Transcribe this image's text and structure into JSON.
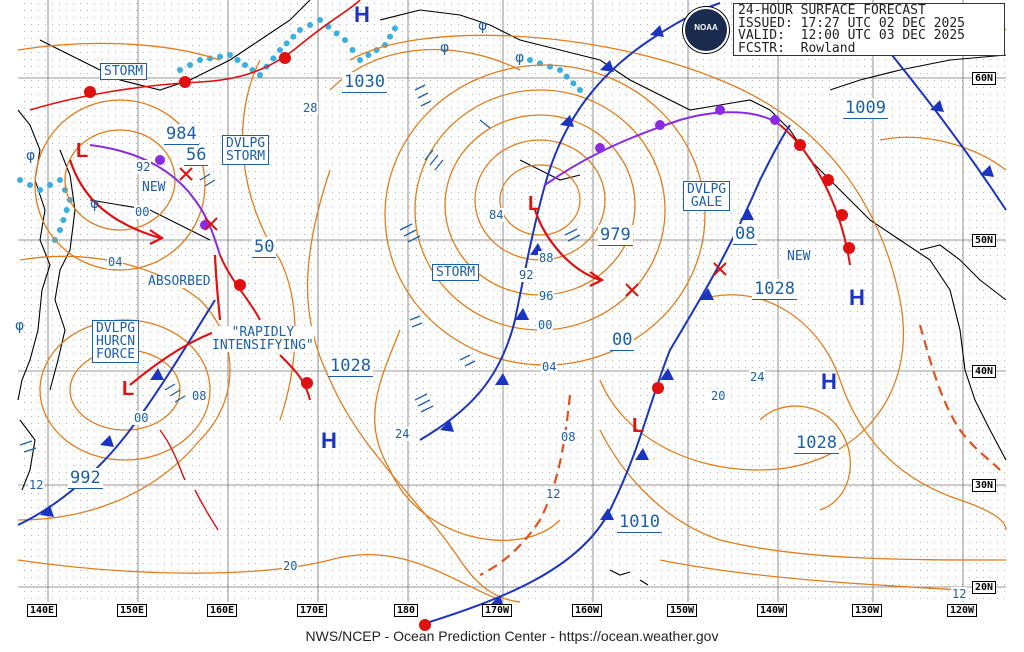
{
  "header": {
    "line1": "24-HOUR SURFACE FORECAST",
    "line2": "ISSUED: 17:27 UTC 02 DEC 2025",
    "line3": "VALID:  12:00 UTC 03 DEC 2025",
    "line4": "FCSTR:  Rowland"
  },
  "logo_text": "NOAA",
  "footer": "NWS/NCEP - Ocean Prediction Center - https://ocean.weather.gov",
  "longitudes": [
    "140E",
    "150E",
    "160E",
    "170E",
    "180",
    "170W",
    "160W",
    "150W",
    "140W",
    "130W",
    "120W"
  ],
  "latitudes": [
    "60N",
    "50N",
    "40N",
    "30N",
    "20N"
  ],
  "warnings": {
    "storm1": "STORM",
    "storm2": "STORM",
    "dvlpg_storm": "DVLPG\nSTORM",
    "dvlpg_gale": "DVLPG\nGALE",
    "dvlpg_hurcn": "DVLPG\nHURCN\nFORCE",
    "absorbed": "ABSORBED",
    "rapidly": "\"RAPIDLY\nINTENSIFYING\"",
    "new1": "NEW",
    "new2": "NEW"
  },
  "pressures": {
    "p984": "984",
    "p56": "56",
    "p50": "50",
    "p1030": "1030",
    "p979": "979",
    "p00": "00",
    "p1009": "1009",
    "p08": "08",
    "p1028a": "1028",
    "p1028b": "1028",
    "p1028c": "1028",
    "p992": "992",
    "p1010": "1010"
  },
  "isobars": [
    "28",
    "92",
    "00",
    "04",
    "84",
    "88",
    "92",
    "96",
    "00",
    "04",
    "08",
    "12",
    "24",
    "08",
    "00",
    "20",
    "24",
    "20",
    "12",
    "12"
  ],
  "highs": [
    "H",
    "H",
    "H",
    "H"
  ],
  "colors": {
    "isobar": "#e07d1e",
    "cold_front": "#1b35c0",
    "warm_front": "#e01010",
    "occluded": "#8a2be2",
    "label": "#1a5fa8",
    "land": "#000000",
    "ice": "#3ab0e0"
  }
}
